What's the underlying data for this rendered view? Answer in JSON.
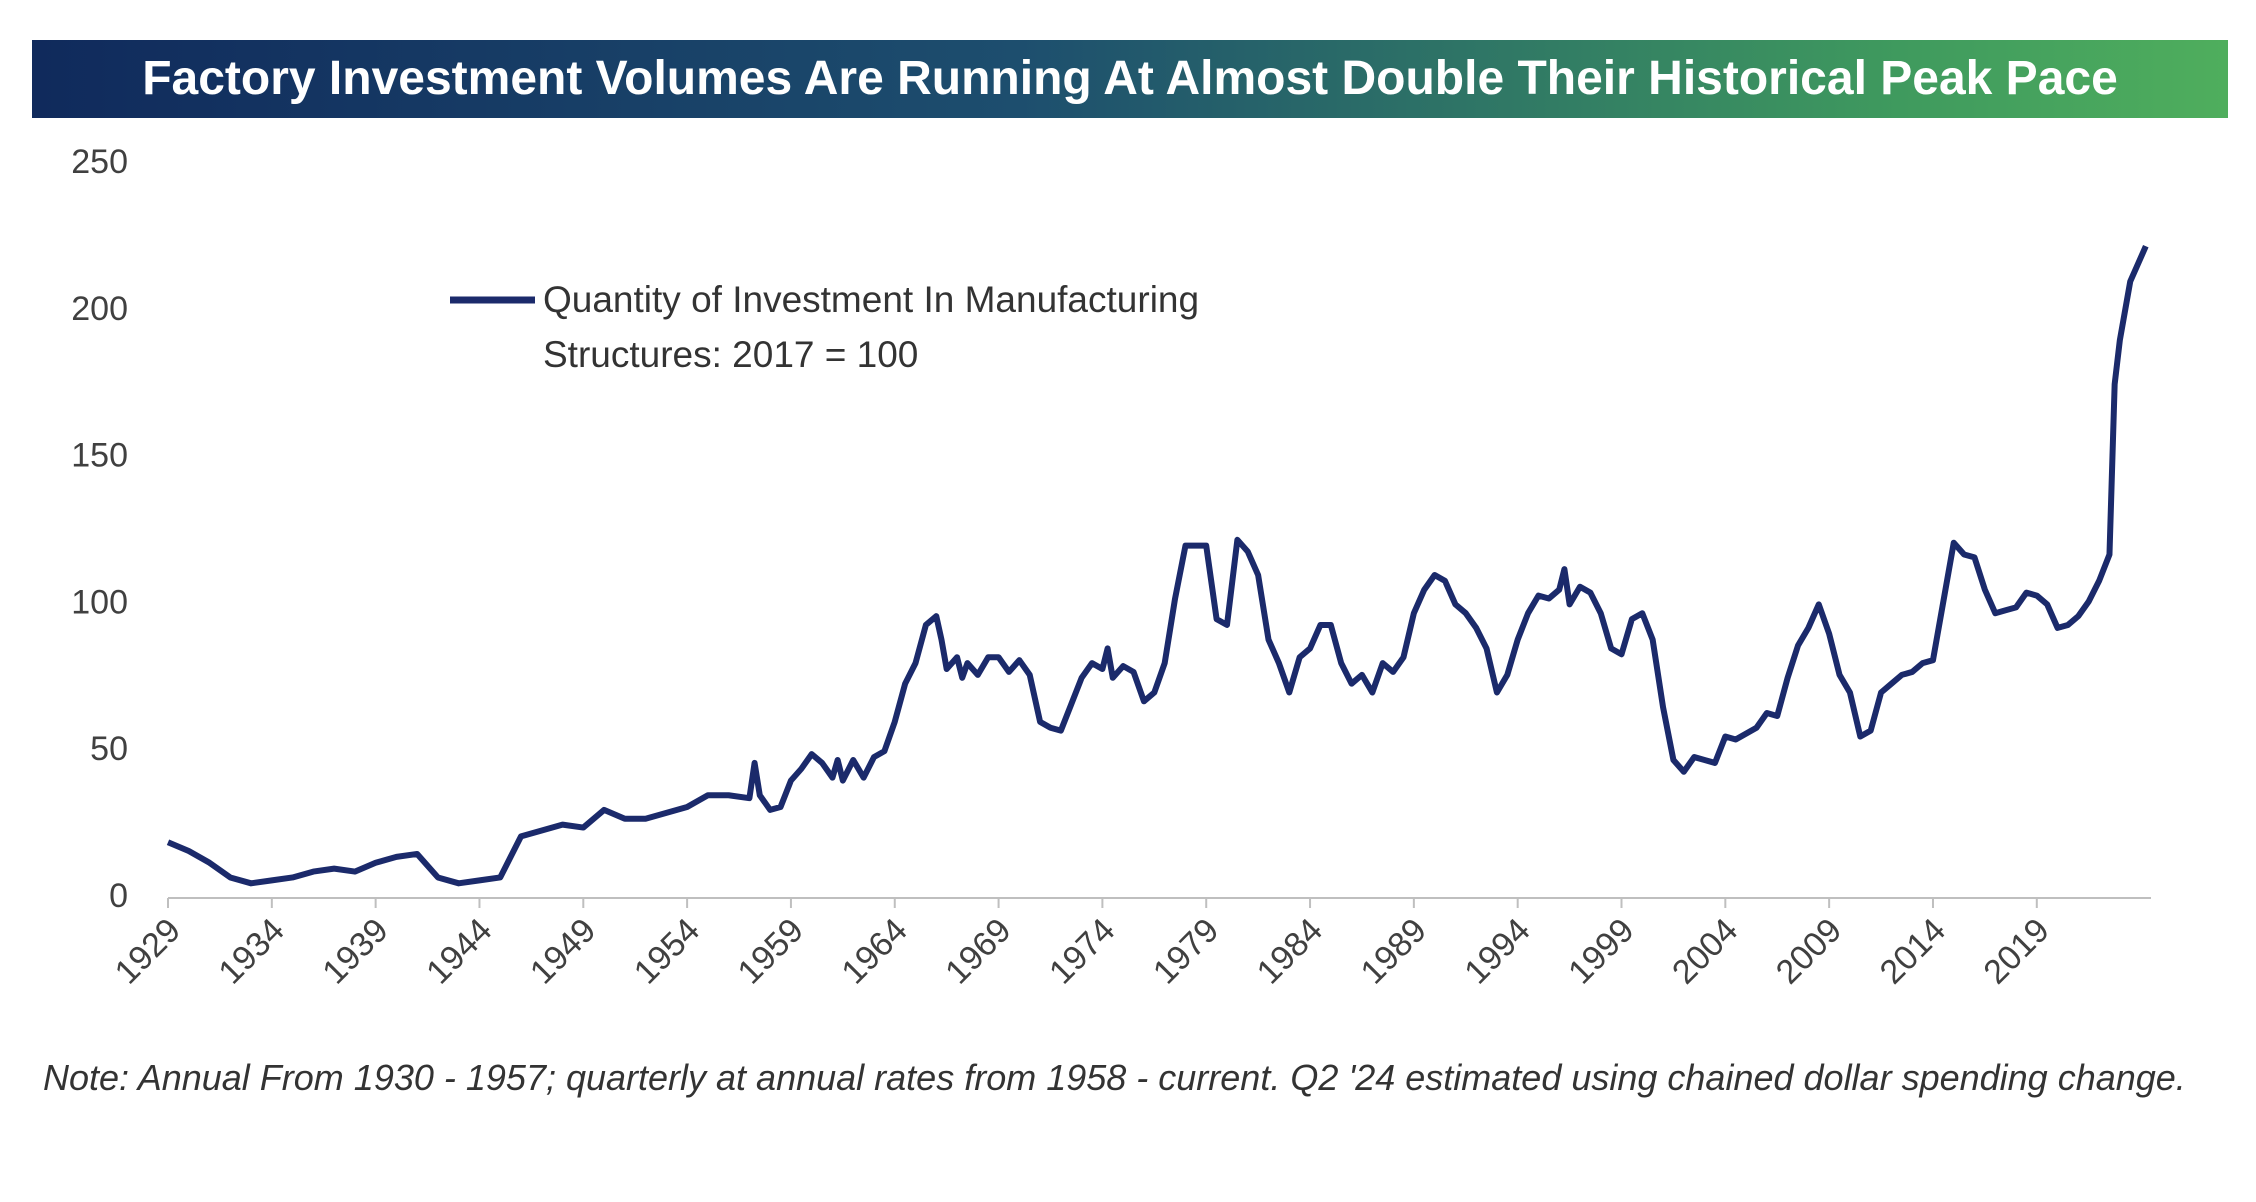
{
  "chart_data": {
    "type": "line",
    "title": "Factory Investment Volumes Are Running At Almost Double Their Historical Peak Pace",
    "note": "Note: Annual From 1930 - 1957; quarterly at annual rates from 1958 - current. Q2 '24 estimated using chained dollar spending change.",
    "x": [
      1929,
      1930,
      1931,
      1932,
      1933,
      1934,
      1935,
      1936,
      1937,
      1938,
      1939,
      1940,
      1941,
      1942,
      1943,
      1944,
      1945,
      1946,
      1947,
      1948,
      1949,
      1950,
      1951,
      1952,
      1953,
      1954,
      1955,
      1956,
      1957,
      1957.25,
      1957.5,
      1958,
      1958.5,
      1959,
      1959.5,
      1960,
      1960.5,
      1961,
      1961.25,
      1961.5,
      1962,
      1962.5,
      1963,
      1963.5,
      1964,
      1964.5,
      1965,
      1965.5,
      1966,
      1966.25,
      1966.5,
      1967,
      1967.25,
      1967.5,
      1968,
      1968.5,
      1969,
      1969.5,
      1970,
      1970.5,
      1971,
      1971.5,
      1972,
      1972.5,
      1973,
      1973.5,
      1974,
      1974.25,
      1974.5,
      1975,
      1975.5,
      1976,
      1976.5,
      1977,
      1977.5,
      1978,
      1978.5,
      1979,
      1979.5,
      1980,
      1980.5,
      1981,
      1981.5,
      1982,
      1982.5,
      1983,
      1983.5,
      1984,
      1984.5,
      1985,
      1985.5,
      1986,
      1986.5,
      1987,
      1987.5,
      1988,
      1988.5,
      1989,
      1989.5,
      1990,
      1990.5,
      1991,
      1991.5,
      1992,
      1992.5,
      1993,
      1993.5,
      1994,
      1994.5,
      1995,
      1995.5,
      1996,
      1996.25,
      1996.5,
      1997,
      1997.5,
      1998,
      1998.5,
      1999,
      1999.5,
      2000,
      2000.5,
      2001,
      2001.5,
      2002,
      2002.5,
      2003,
      2003.5,
      2004,
      2004.5,
      2005,
      2005.5,
      2006,
      2006.5,
      2007,
      2007.5,
      2008,
      2008.5,
      2009,
      2009.5,
      2010,
      2010.5,
      2011,
      2011.5,
      2012,
      2012.5,
      2013,
      2013.5,
      2014,
      2014.5,
      2015,
      2015.5,
      2016,
      2016.5,
      2017,
      2017.5,
      2018,
      2018.5,
      2019,
      2019.5,
      2020,
      2020.5,
      2021,
      2021.5,
      2022,
      2022.5,
      2022.75,
      2023,
      2023.5,
      2024.25
    ],
    "series": [
      {
        "name": "Quantity of Investment In Manufacturing Structures: 2017 = 100",
        "color": "#1b2a6b",
        "values": [
          19,
          16,
          12,
          7,
          5,
          6,
          7,
          9,
          10,
          9,
          12,
          14,
          15,
          7,
          5,
          6,
          7,
          21,
          23,
          25,
          24,
          30,
          27,
          27,
          29,
          31,
          35,
          35,
          34,
          46,
          35,
          30,
          31,
          40,
          44,
          49,
          46,
          41,
          47,
          40,
          47,
          41,
          48,
          50,
          60,
          73,
          80,
          93,
          96,
          88,
          78,
          82,
          75,
          80,
          76,
          82,
          82,
          77,
          81,
          76,
          60,
          58,
          57,
          66,
          75,
          80,
          78,
          85,
          75,
          79,
          77,
          67,
          70,
          80,
          102,
          120,
          120,
          120,
          95,
          93,
          122,
          118,
          110,
          88,
          80,
          70,
          82,
          85,
          93,
          93,
          80,
          73,
          76,
          70,
          80,
          77,
          82,
          97,
          105,
          110,
          108,
          100,
          97,
          92,
          85,
          70,
          76,
          88,
          97,
          103,
          102,
          105,
          112,
          100,
          106,
          104,
          97,
          85,
          83,
          95,
          97,
          88,
          65,
          47,
          43,
          48,
          47,
          46,
          55,
          54,
          56,
          58,
          63,
          62,
          75,
          86,
          92,
          100,
          90,
          76,
          70,
          55,
          57,
          70,
          73,
          76,
          77,
          80,
          81,
          101,
          121,
          117,
          116,
          105,
          97,
          98,
          99,
          104,
          103,
          100,
          92,
          93,
          96,
          101,
          108,
          117,
          175,
          190,
          210,
          222
        ]
      }
    ],
    "xlim": [
      1929,
      2024.5
    ],
    "xticks": [
      1929,
      1934,
      1939,
      1944,
      1949,
      1954,
      1959,
      1964,
      1969,
      1974,
      1979,
      1984,
      1989,
      1994,
      1999,
      2004,
      2009,
      2014,
      2019
    ],
    "ylim": [
      0,
      250
    ],
    "yticks": [
      0,
      50,
      100,
      150,
      200,
      250
    ],
    "grid": false
  }
}
